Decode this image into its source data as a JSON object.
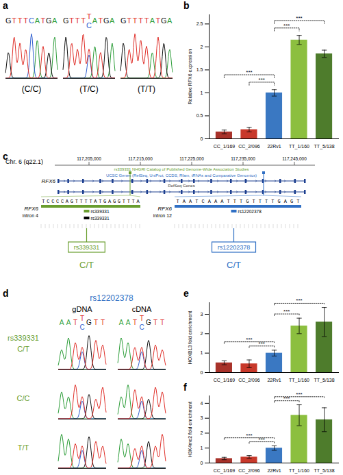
{
  "panel_labels": [
    "a",
    "b",
    "c",
    "d",
    "e",
    "f"
  ],
  "a": {
    "samples": [
      {
        "bases": [
          [
            "G"
          ],
          [
            "T"
          ],
          [
            "T"
          ],
          [
            "T"
          ],
          [
            "C"
          ],
          [
            "A"
          ],
          [
            "T"
          ],
          [
            "G"
          ],
          [
            "A"
          ]
        ],
        "genotype": "(C/C)"
      },
      {
        "bases": [
          [
            "G"
          ],
          [
            "T"
          ],
          [
            "T"
          ],
          [
            "T"
          ],
          [
            "T",
            "C"
          ],
          [
            "A"
          ],
          [
            "T"
          ],
          [
            "G"
          ],
          [
            "A"
          ]
        ],
        "genotype": "(T/C)"
      },
      {
        "bases": [
          [
            "G"
          ],
          [
            "T"
          ],
          [
            "T"
          ],
          [
            "T"
          ],
          [
            "T"
          ],
          [
            "A"
          ],
          [
            "T"
          ],
          [
            "G"
          ],
          [
            "A"
          ]
        ],
        "genotype": "(T/T)"
      }
    ]
  },
  "c": {
    "chromosome": "Chr. 6 (q22.1)",
    "ruler_ticks": [
      {
        "value": 117205000,
        "label": "117,205,000"
      },
      {
        "value": 117215000,
        "label": "117,215,000"
      },
      {
        "value": 117225000,
        "label": "117,225,000"
      },
      {
        "value": 117235000,
        "label": "117,235,000"
      },
      {
        "value": 117245000,
        "label": "117,245,000"
      }
    ],
    "tracks": [
      "rs339331 NHGRI Catalog of Published Genome-Wide Association Studies",
      "UCSC Genes (RefSeq, UniProt, CCDS, Rfam, tRNAs and Comparative Genomics)",
      "RefSeq Genes"
    ],
    "gene": "RFX6",
    "gene_range": [
      117199000,
      117247000
    ],
    "zooms": [
      {
        "gene": "RFX6",
        "region": "intron 4",
        "sequence": "TCCCCAGTTTTATGAGGTTTA",
        "position": 117213000,
        "snp_rows": [
          "rs339331",
          "rs339331"
        ],
        "snp": "rs339331",
        "genotype": "C/T"
      },
      {
        "gene": "RFX6",
        "region": "intron 12",
        "sequence": "TAATCAAATTTGTTTTGAGT",
        "position": 117239000,
        "snp_rows": [
          "rs12202378"
        ],
        "snp": "rs12202378",
        "genotype": "C/T"
      }
    ]
  },
  "d": {
    "snp_header": "rs12202378",
    "columns": [
      "gDNA",
      "cDNA"
    ],
    "row_title": "rs339331",
    "rows": [
      {
        "genotype": "C/T",
        "bases": [
          [
            "A"
          ],
          [
            "A"
          ],
          [
            "T"
          ],
          [
            "T",
            "C"
          ],
          [
            "G"
          ],
          [
            "T"
          ],
          [
            "T"
          ]
        ]
      },
      {
        "genotype": "C/C"
      },
      {
        "genotype": "T/T"
      }
    ]
  },
  "chart_data": [
    {
      "type": "bar",
      "ylabel": "Relative RFX6 expression",
      "categories": [
        "CC_1/169",
        "CC_2/096",
        "22Rv1",
        "TT_1/160",
        "TT_5/138"
      ],
      "values": [
        0.15,
        0.2,
        1,
        2.15,
        1.85
      ],
      "errors": [
        0.04,
        0.05,
        0.07,
        0.1,
        0.08
      ],
      "colors": [
        "#a8322a",
        "#c8392b",
        "#3a78c2",
        "#8cbf3f",
        "#4e7c2c"
      ],
      "ylim": [
        0,
        2.7
      ],
      "yticks": [
        0,
        0.5,
        1,
        1.5,
        2,
        2.5
      ],
      "significance": [
        {
          "from": "CC_2/096",
          "to": "22Rv1",
          "label": "***"
        },
        {
          "from": "CC_1/169",
          "to": "22Rv1",
          "label": "***"
        },
        {
          "from": "22Rv1",
          "to": "TT_1/160",
          "label": "***"
        },
        {
          "from": "22Rv1",
          "to": "TT_5/138",
          "label": "***"
        }
      ]
    },
    {
      "type": "bar",
      "ylabel": "HOXB13 fold enrichment",
      "categories": [
        "CC_1/169",
        "CC_2/096",
        "22Rv1",
        "TT_1/160",
        "TT_5/138"
      ],
      "values": [
        0.5,
        0.45,
        1,
        2.4,
        2.6
      ],
      "errors": [
        0.1,
        0.2,
        0.15,
        0.4,
        0.75
      ],
      "colors": [
        "#a8322a",
        "#c8392b",
        "#3a78c2",
        "#8cbf3f",
        "#4e7c2c"
      ],
      "ylim": [
        0,
        3.6
      ],
      "yticks": [
        0,
        1,
        2,
        3
      ],
      "significance": [
        {
          "from": "CC_2/096",
          "to": "22Rv1",
          "label": "***"
        },
        {
          "from": "CC_1/169",
          "to": "22Rv1",
          "label": "***"
        },
        {
          "from": "22Rv1",
          "to": "TT_1/160",
          "label": "***"
        },
        {
          "from": "22Rv1",
          "to": "TT_5/138",
          "label": "***"
        }
      ]
    },
    {
      "type": "bar",
      "ylabel": "H3K4me2 fold enrichment",
      "categories": [
        "CC_1/169",
        "CC_2/096",
        "22Rv1",
        "TT_1/160",
        "TT_5/138"
      ],
      "values": [
        0.3,
        0.4,
        1,
        3.2,
        2.9
      ],
      "errors": [
        0.08,
        0.1,
        0.15,
        0.7,
        0.8
      ],
      "colors": [
        "#a8322a",
        "#c8392b",
        "#3a78c2",
        "#8cbf3f",
        "#4e7c2c"
      ],
      "ylim": [
        0,
        4.5
      ],
      "yticks": [
        0,
        1,
        2,
        3,
        4
      ],
      "significance": [
        {
          "from": "CC_2/096",
          "to": "22Rv1",
          "label": "***"
        },
        {
          "from": "CC_1/169",
          "to": "22Rv1",
          "label": "***"
        },
        {
          "from": "22Rv1",
          "to": "TT_1/160",
          "label": "***"
        },
        {
          "from": "22Rv1",
          "to": "TT_5/138",
          "label": "***"
        }
      ]
    }
  ]
}
